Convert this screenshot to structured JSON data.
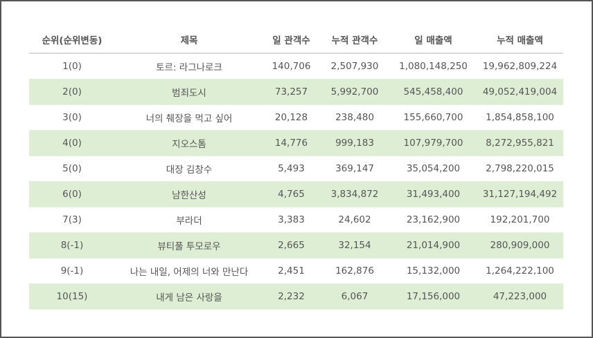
{
  "columns": {
    "rank": "순위(순위변동)",
    "title": "제목",
    "daily_audience": "일 관객수",
    "cumulative_audience": "누적 관객수",
    "daily_sales": "일 매출액",
    "cumulative_sales": "누적 매출액"
  },
  "rows": [
    {
      "rank": "1(0)",
      "title": "토르: 라그나로크",
      "daily_audience": "140,706",
      "cumulative_audience": "2,507,930",
      "daily_sales": "1,080,148,250",
      "cumulative_sales": "19,962,809,224"
    },
    {
      "rank": "2(0)",
      "title": "범죄도시",
      "daily_audience": "73,257",
      "cumulative_audience": "5,992,700",
      "daily_sales": "545,458,400",
      "cumulative_sales": "49,052,419,004"
    },
    {
      "rank": "3(0)",
      "title": "너의 췌장을 먹고 싶어",
      "daily_audience": "20,128",
      "cumulative_audience": "238,480",
      "daily_sales": "155,660,700",
      "cumulative_sales": "1,854,858,100"
    },
    {
      "rank": "4(0)",
      "title": "지오스톰",
      "daily_audience": "14,776",
      "cumulative_audience": "999,183",
      "daily_sales": "107,979,700",
      "cumulative_sales": "8,272,955,821"
    },
    {
      "rank": "5(0)",
      "title": "대장 김창수",
      "daily_audience": "5,493",
      "cumulative_audience": "369,147",
      "daily_sales": "35,054,200",
      "cumulative_sales": "2,798,220,015"
    },
    {
      "rank": "6(0)",
      "title": "남한산성",
      "daily_audience": "4,765",
      "cumulative_audience": "3,834,872",
      "daily_sales": "31,493,400",
      "cumulative_sales": "31,127,194,492"
    },
    {
      "rank": "7(3)",
      "title": "부라더",
      "daily_audience": "3,383",
      "cumulative_audience": "24,602",
      "daily_sales": "23,162,900",
      "cumulative_sales": "192,201,700"
    },
    {
      "rank": "8(-1)",
      "title": "뷰티풀 투모로우",
      "daily_audience": "2,665",
      "cumulative_audience": "32,154",
      "daily_sales": "21,014,900",
      "cumulative_sales": "280,909,000"
    },
    {
      "rank": "9(-1)",
      "title": "나는 내일, 어제의 너와 만난다",
      "daily_audience": "2,451",
      "cumulative_audience": "162,876",
      "daily_sales": "15,132,000",
      "cumulative_sales": "1,264,222,100"
    },
    {
      "rank": "10(15)",
      "title": "내게 남은 사랑을",
      "daily_audience": "2,232",
      "cumulative_audience": "6,067",
      "daily_sales": "17,156,000",
      "cumulative_sales": "47,223,000"
    }
  ],
  "colors": {
    "stripe": "#deeed4",
    "text": "#555555",
    "frame": "#555555"
  }
}
